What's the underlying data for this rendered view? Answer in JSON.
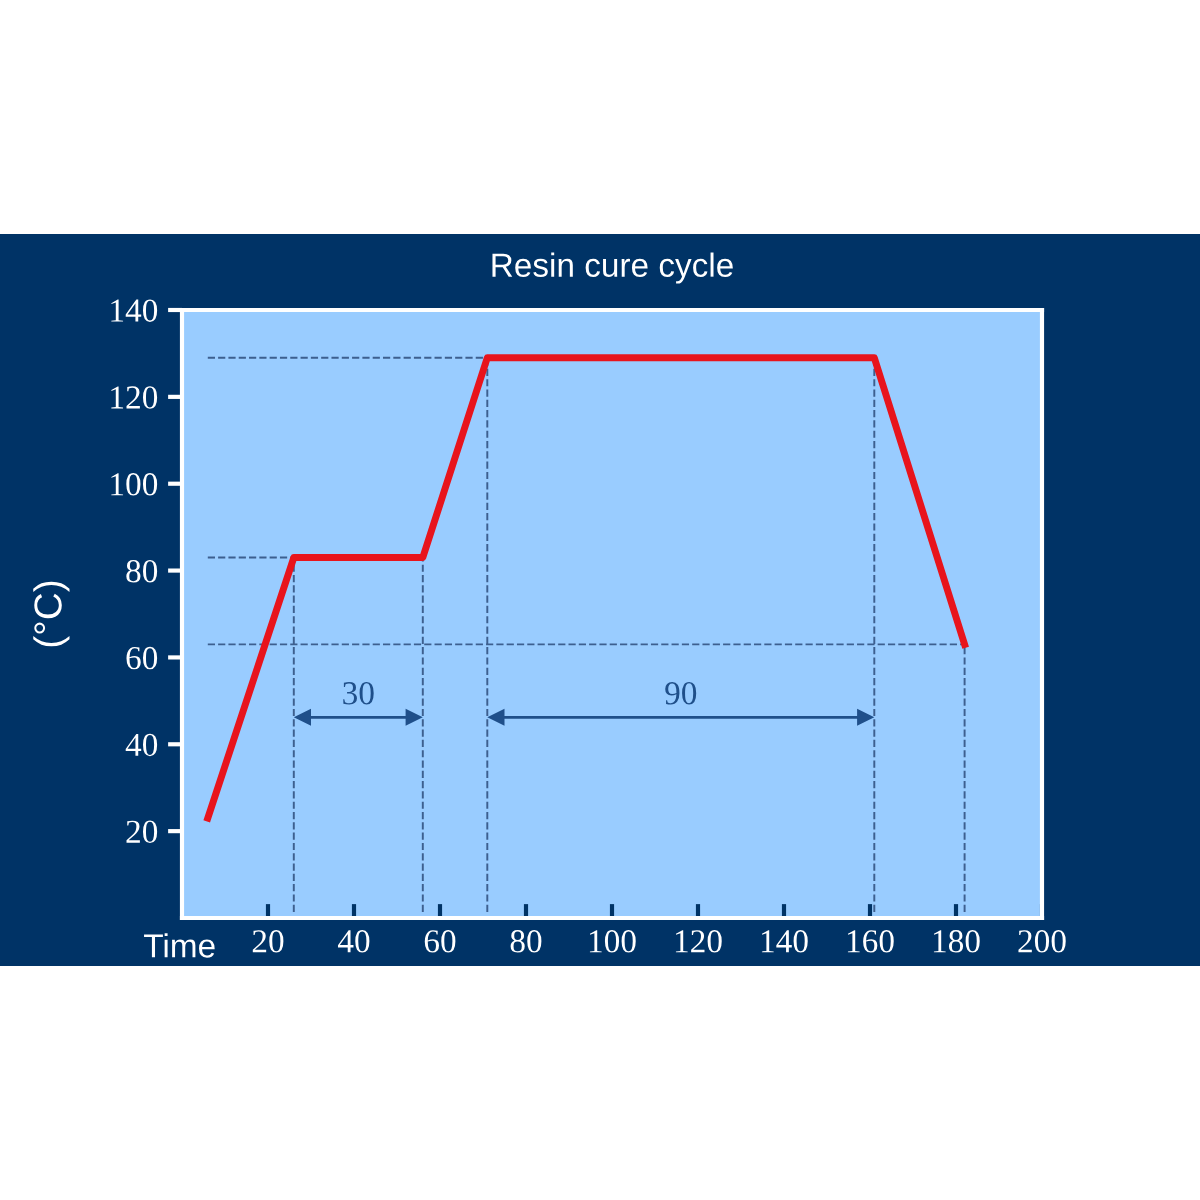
{
  "chart_data": {
    "type": "line",
    "title": "Resin cure cycle",
    "xlabel": "Time",
    "ylabel": "(°C)",
    "x": [
      6,
      26,
      56,
      71,
      161,
      182
    ],
    "series": [
      {
        "color": "#e8141c",
        "values": [
          23,
          83,
          83,
          129,
          129,
          63
        ]
      }
    ],
    "xlim": [
      0,
      200
    ],
    "ylim": [
      0,
      140
    ],
    "xticks": [
      20,
      40,
      60,
      80,
      100,
      120,
      140,
      160,
      180,
      200
    ],
    "yticks": [
      20,
      40,
      60,
      80,
      100,
      120,
      140
    ],
    "ref_lines": [
      {
        "axis": "y",
        "value": 129,
        "color": "#3d5f8f",
        "line_style": "dashed"
      },
      {
        "axis": "y",
        "value": 83,
        "color": "#3d5f8f",
        "line_style": "dashed"
      },
      {
        "axis": "y",
        "value": 63,
        "color": "#3d5f8f",
        "line_style": "dashed"
      },
      {
        "axis": "x",
        "value": 26,
        "color": "#3d5f8f",
        "line_style": "dashed"
      },
      {
        "axis": "x",
        "value": 56,
        "color": "#3d5f8f",
        "line_style": "dashed"
      },
      {
        "axis": "x",
        "value": 71,
        "color": "#3d5f8f",
        "line_style": "dashed"
      },
      {
        "axis": "x",
        "value": 161,
        "color": "#3d5f8f",
        "line_style": "dashed"
      },
      {
        "axis": "x",
        "value": 182,
        "color": "#3d5f8f",
        "line_style": "dashed"
      }
    ],
    "annotations": [
      "30",
      "90"
    ],
    "grid": false,
    "legend": false,
    "marker": "none",
    "line_style": "solid"
  }
}
